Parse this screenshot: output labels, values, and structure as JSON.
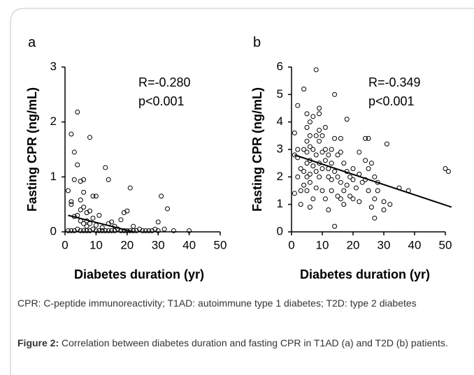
{
  "chart_data": [
    {
      "type": "scatter",
      "panel_label": "a",
      "y_label": "Fasting CPR (ng/mL)",
      "x_label": "Diabetes duration (yr)",
      "annotations": [
        "R=-0.280",
        "p<0.001"
      ],
      "xlim": [
        0,
        50
      ],
      "xticks": [
        0,
        10,
        20,
        30,
        40,
        50
      ],
      "ylim": [
        0,
        3
      ],
      "yticks": [
        0,
        1,
        2,
        3
      ],
      "color": "#000000",
      "x": [
        1,
        2,
        2,
        2,
        3,
        3,
        3,
        3,
        4,
        4,
        4,
        5,
        5,
        5,
        5,
        6,
        6,
        6,
        6,
        6,
        7,
        7,
        7,
        8,
        8,
        8,
        9,
        9,
        9,
        10,
        10,
        11,
        11,
        12,
        13,
        13,
        14,
        14,
        15,
        15,
        16,
        17,
        18,
        19,
        19,
        20,
        21,
        21,
        22,
        23,
        24,
        25,
        26,
        28,
        30,
        30,
        31,
        32,
        33,
        40,
        2,
        4,
        8,
        12,
        16,
        18,
        20,
        10,
        14,
        22,
        27,
        29,
        35,
        1,
        5,
        7
      ],
      "y": [
        0.75,
        1.78,
        0.55,
        0.5,
        1.45,
        0.95,
        0.28,
        0.02,
        2.18,
        1.22,
        0.05,
        0.92,
        0.58,
        0.4,
        0.02,
        0.95,
        0.72,
        0.45,
        0.15,
        0.02,
        0.2,
        0.1,
        0.02,
        1.72,
        0.38,
        0.02,
        0.65,
        0.25,
        0.05,
        0.65,
        0.02,
        0.3,
        0.02,
        0.08,
        1.17,
        0.02,
        0.95,
        0.15,
        0.18,
        0.02,
        0.1,
        0.05,
        0.22,
        0.35,
        0.02,
        0.38,
        0.8,
        0.02,
        0.1,
        0.02,
        0.05,
        0.02,
        0.02,
        0.02,
        0.18,
        0.02,
        0.65,
        0.05,
        0.42,
        0.02,
        0.02,
        0.3,
        0.15,
        0.02,
        0.02,
        0.02,
        0.02,
        0.12,
        0.02,
        0.02,
        0.02,
        0.05,
        0.02,
        0.02,
        0.2,
        0.35
      ],
      "trend_line": {
        "x": [
          1,
          22
        ],
        "y": [
          0.3,
          0
        ]
      }
    },
    {
      "type": "scatter",
      "panel_label": "b",
      "y_label": "Fasting CPR (ng/mL)",
      "x_label": "Diabetes duration (yr)",
      "annotations": [
        "R=-0.349",
        "p<0.001"
      ],
      "xlim": [
        0,
        50
      ],
      "xticks": [
        0,
        10,
        20,
        30,
        40,
        50
      ],
      "ylim": [
        0,
        6
      ],
      "yticks": [
        0,
        1,
        2,
        3,
        4,
        5,
        6
      ],
      "color": "#000000",
      "x": [
        1,
        1,
        1,
        2,
        2,
        2,
        2,
        3,
        3,
        3,
        4,
        4,
        4,
        4,
        5,
        5,
        5,
        5,
        5,
        5,
        5,
        6,
        6,
        6,
        6,
        6,
        6,
        6,
        7,
        7,
        7,
        7,
        8,
        8,
        8,
        8,
        8,
        9,
        9,
        9,
        9,
        9,
        9,
        10,
        10,
        10,
        10,
        11,
        11,
        11,
        11,
        12,
        12,
        12,
        12,
        13,
        13,
        13,
        13,
        14,
        14,
        14,
        14,
        15,
        15,
        15,
        16,
        16,
        16,
        16,
        17,
        17,
        17,
        18,
        18,
        18,
        19,
        19,
        20,
        20,
        20,
        21,
        22,
        22,
        22,
        23,
        24,
        24,
        24,
        25,
        25,
        25,
        26,
        26,
        27,
        27,
        27,
        28,
        28,
        30,
        30,
        31,
        32,
        35,
        38,
        50,
        51
      ],
      "y": [
        3.6,
        2.8,
        1.4,
        4.6,
        3.0,
        2.7,
        2.0,
        2.3,
        1.5,
        1.0,
        5.2,
        3.0,
        2.2,
        1.7,
        4.3,
        3.8,
        3.3,
        2.9,
        2.5,
        2.0,
        1.5,
        4.0,
        3.5,
        3.1,
        2.6,
        2.1,
        1.8,
        0.9,
        4.2,
        3.0,
        2.4,
        1.2,
        5.9,
        3.5,
        2.8,
        2.2,
        1.6,
        4.5,
        4.3,
        3.7,
        3.3,
        2.5,
        2.0,
        3.5,
        2.9,
        2.3,
        1.5,
        3.8,
        3.0,
        2.6,
        1.2,
        2.8,
        2.3,
        2.0,
        0.8,
        3.0,
        2.5,
        1.9,
        1.5,
        5.0,
        3.4,
        2.2,
        0.2,
        2.8,
        2.0,
        1.3,
        3.4,
        2.9,
        1.8,
        1.2,
        2.5,
        1.5,
        1.0,
        4.1,
        2.2,
        1.7,
        2.0,
        1.3,
        2.3,
        1.9,
        1.2,
        1.6,
        2.9,
        2.1,
        1.1,
        1.8,
        3.4,
        2.6,
        1.9,
        3.4,
        2.3,
        1.5,
        2.5,
        0.9,
        2.0,
        1.2,
        0.5,
        1.8,
        1.5,
        1.1,
        0.8,
        3.2,
        1.0,
        1.6,
        1.5,
        2.3,
        2.2
      ],
      "trend_line": {
        "x": [
          1,
          52
        ],
        "y": [
          2.8,
          0.9
        ]
      }
    }
  ],
  "footnote": "CPR: C-peptide immunoreactivity; T1AD: autoimmune type 1 diabetes; T2D: type 2 diabetes",
  "figure_label": "Figure 2:",
  "figure_caption": "Correlation between diabetes duration and fasting CPR in T1AD (a) and T2D (b) patients."
}
